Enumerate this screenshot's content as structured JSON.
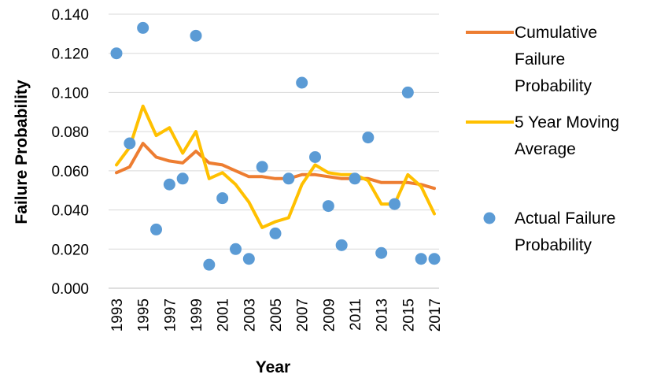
{
  "chart_data": {
    "type": "line",
    "xlabel": "Year",
    "ylabel": "Failure Probability",
    "ylim": [
      0,
      0.14
    ],
    "y_ticks": [
      "0.000",
      "0.020",
      "0.040",
      "0.060",
      "0.080",
      "0.100",
      "0.120",
      "0.140"
    ],
    "x": [
      1993,
      1994,
      1995,
      1996,
      1997,
      1998,
      1999,
      2000,
      2001,
      2002,
      2003,
      2004,
      2005,
      2006,
      2007,
      2008,
      2009,
      2010,
      2011,
      2012,
      2013,
      2014,
      2015,
      2016,
      2017
    ],
    "x_tick_labels": [
      "1993",
      "1995",
      "1997",
      "1999",
      "2001",
      "2003",
      "2005",
      "2007",
      "2009",
      "2011",
      "2013",
      "2015",
      "2017"
    ],
    "grid": "horizontal",
    "legend_position": "right",
    "series": [
      {
        "name": "Cumulative Failure Probability",
        "legend_lines": [
          "Cumulative",
          "Failure",
          "Probability"
        ],
        "kind": "line",
        "color": "#ED7D31",
        "values": [
          0.059,
          0.062,
          0.074,
          0.067,
          0.065,
          0.064,
          0.07,
          0.064,
          0.063,
          0.06,
          0.057,
          0.057,
          0.056,
          0.056,
          0.058,
          0.058,
          0.057,
          0.056,
          0.056,
          0.056,
          0.054,
          0.054,
          0.054,
          0.053,
          0.051
        ]
      },
      {
        "name": "5 Year Moving Average",
        "legend_lines": [
          "5 Year Moving",
          "Average"
        ],
        "kind": "line",
        "color": "#FFC000",
        "values": [
          0.063,
          0.072,
          0.093,
          0.078,
          0.082,
          0.069,
          0.08,
          0.056,
          0.059,
          0.053,
          0.044,
          0.031,
          0.034,
          0.036,
          0.053,
          0.063,
          0.059,
          0.058,
          0.058,
          0.055,
          0.043,
          0.043,
          0.058,
          0.052,
          0.038
        ]
      },
      {
        "name": "Actual Failure Probability",
        "legend_lines": [
          "Actual Failure",
          "Probability"
        ],
        "kind": "scatter",
        "color": "#5B9BD5",
        "values": [
          0.12,
          0.074,
          0.133,
          0.03,
          0.053,
          0.056,
          0.129,
          0.012,
          0.046,
          0.02,
          0.015,
          0.062,
          0.028,
          0.056,
          0.105,
          0.067,
          0.042,
          0.022,
          0.056,
          0.077,
          0.018,
          0.043,
          0.1,
          0.015,
          0.015
        ]
      }
    ]
  }
}
